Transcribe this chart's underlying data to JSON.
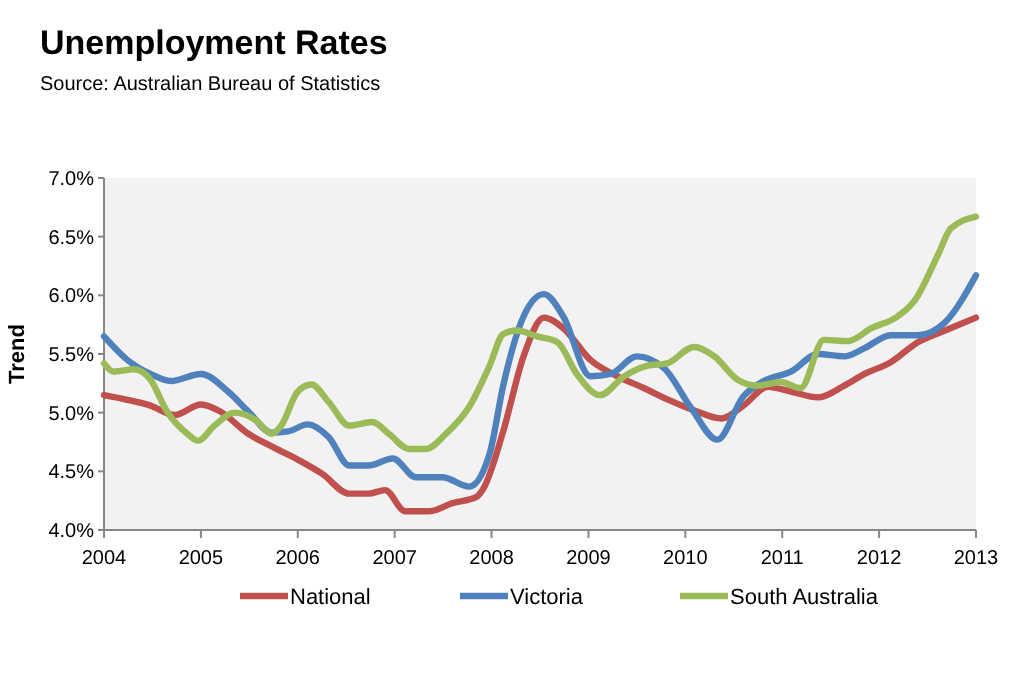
{
  "chart_data": {
    "type": "line",
    "title": "Unemployment Rates",
    "subtitle": "Source: Australian Bureau of Statistics",
    "ylabel": "Trend",
    "xlim": [
      2004,
      2013
    ],
    "xticks": [
      2004,
      2005,
      2006,
      2007,
      2008,
      2009,
      2010,
      2011,
      2012,
      2013
    ],
    "ylim": [
      4,
      7
    ],
    "yticks": [
      {
        "value": 4,
        "label": "4.0%"
      },
      {
        "value": 4.5,
        "label": "4.5%"
      },
      {
        "value": 5,
        "label": "5.0%"
      },
      {
        "value": 5.5,
        "label": "5.5%"
      },
      {
        "value": 6,
        "label": "6.0%"
      },
      {
        "value": 6.5,
        "label": "6.5%"
      },
      {
        "value": 7,
        "label": "7.0%"
      }
    ],
    "grid": false,
    "legend": "bottom",
    "line_style": "solid",
    "marker": "none",
    "series": [
      {
        "name": "National",
        "color": "#c0504d",
        "x": [
          2004,
          2004.24,
          2004.48,
          2004.73,
          2005,
          2005.2,
          2005.49,
          2005.76,
          2006,
          2006.25,
          2006.53,
          2006.73,
          2006.9,
          2007.11,
          2007.36,
          2007.6,
          2007.84,
          2007.92,
          2008.12,
          2008.33,
          2008.54,
          2008.74,
          2009.02,
          2009.3,
          2009.57,
          2009.85,
          2010.12,
          2010.37,
          2010.6,
          2010.85,
          2011.09,
          2011.37,
          2011.64,
          2011.85,
          2012.12,
          2012.4,
          2012.68,
          2013
        ],
        "values": [
          5.15,
          5.11,
          5.06,
          4.98,
          5.07,
          5.01,
          4.82,
          4.7,
          4.6,
          4.48,
          4.31,
          4.31,
          4.34,
          4.16,
          4.16,
          4.23,
          4.28,
          4.36,
          4.84,
          5.48,
          5.81,
          5.72,
          5.45,
          5.31,
          5.21,
          5.1,
          5.01,
          4.95,
          5.06,
          5.22,
          5.18,
          5.13,
          5.23,
          5.33,
          5.43,
          5.6,
          5.7,
          5.81
        ]
      },
      {
        "name": "Victoria",
        "color": "#4f81bd",
        "x": [
          2004,
          2004.24,
          2004.48,
          2004.69,
          2005,
          2005.28,
          2005.49,
          2005.73,
          2005.9,
          2006.1,
          2006.32,
          2006.53,
          2006.73,
          2006.98,
          2007.22,
          2007.49,
          2007.77,
          2007.98,
          2008.12,
          2008.33,
          2008.54,
          2008.74,
          2009.02,
          2009.23,
          2009.5,
          2009.78,
          2010.06,
          2010.33,
          2010.6,
          2010.81,
          2011.09,
          2011.37,
          2011.64,
          2011.85,
          2012.12,
          2012.4,
          2012.68,
          2013
        ],
        "values": [
          5.65,
          5.45,
          5.33,
          5.27,
          5.33,
          5.18,
          5.01,
          4.83,
          4.84,
          4.9,
          4.79,
          4.55,
          4.55,
          4.61,
          4.45,
          4.45,
          4.37,
          4.65,
          5.23,
          5.82,
          6.01,
          5.82,
          5.31,
          5.33,
          5.48,
          5.38,
          5.04,
          4.77,
          5.14,
          5.27,
          5.35,
          5.5,
          5.48,
          5.55,
          5.66,
          5.66,
          5.77,
          6.17
        ]
      },
      {
        "name": "South Australia",
        "color": "#9bbb59",
        "x": [
          2004,
          2004.1,
          2004.31,
          2004.48,
          2004.65,
          2004.86,
          2004.97,
          2005.14,
          2005.35,
          2005.56,
          2005.73,
          2005.83,
          2006,
          2006.14,
          2006.32,
          2006.53,
          2006.77,
          2006.94,
          2007.15,
          2007.32,
          2007.53,
          2007.77,
          2007.98,
          2008.12,
          2008.26,
          2008.47,
          2008.68,
          2008.88,
          2009.12,
          2009.37,
          2009.61,
          2009.81,
          2010.09,
          2010.3,
          2010.54,
          2010.74,
          2010.99,
          2011.19,
          2011.43,
          2011.68,
          2011.92,
          2012.19,
          2012.37,
          2012.61,
          2012.74,
          2013
        ],
        "values": [
          5.42,
          5.35,
          5.37,
          5.28,
          5.01,
          4.82,
          4.76,
          4.89,
          5,
          4.94,
          4.82,
          4.89,
          5.18,
          5.24,
          5.09,
          4.89,
          4.92,
          4.82,
          4.69,
          4.69,
          4.82,
          5.05,
          5.4,
          5.67,
          5.7,
          5.65,
          5.6,
          5.33,
          5.15,
          5.31,
          5.4,
          5.42,
          5.56,
          5.48,
          5.28,
          5.23,
          5.26,
          5.21,
          5.62,
          5.61,
          5.72,
          5.82,
          5.96,
          6.35,
          6.57,
          6.67
        ]
      }
    ]
  }
}
